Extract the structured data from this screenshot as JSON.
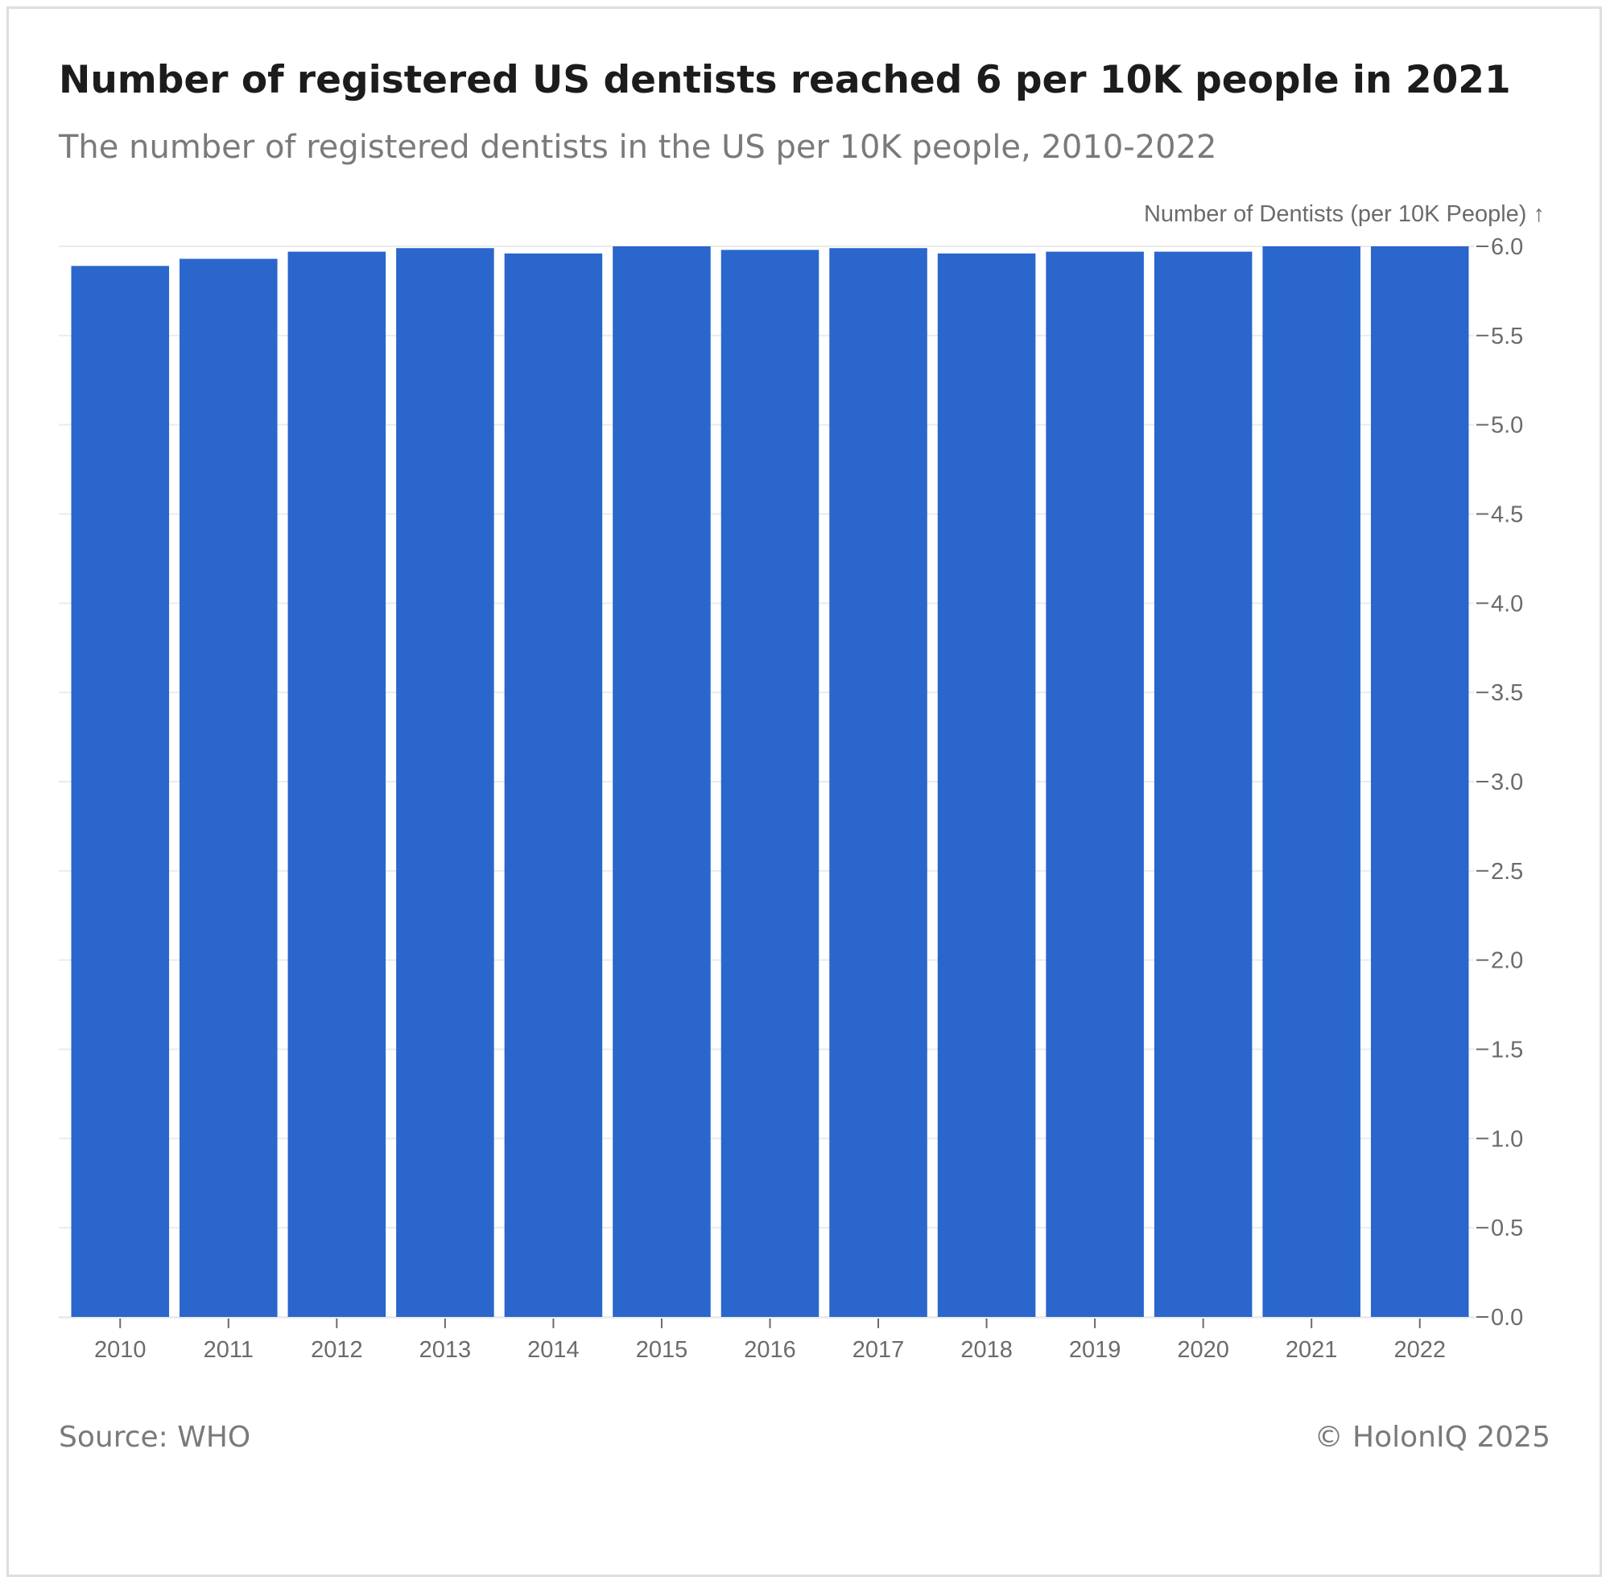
{
  "header": {
    "title": "Number of registered US dentists reached 6 per 10K people in 2021",
    "subtitle": "The number of registered dentists in the US per 10K people, 2010-2022"
  },
  "footer": {
    "source": "Source: WHO",
    "copyright": "© HolonIQ 2025"
  },
  "colors": {
    "bar": "#2a66cc",
    "grid": "#ebebeb",
    "axis": "#6b6b6b"
  },
  "chart_data": {
    "type": "bar",
    "title": "Number of registered US dentists reached 6 per 10K people in 2021",
    "subtitle": "The number of registered dentists in the US per 10K people, 2010-2022",
    "ylabel": "Number of Dentists (per 10K People) ↑",
    "xlabel": "",
    "categories": [
      "2010",
      "2011",
      "2012",
      "2013",
      "2014",
      "2015",
      "2016",
      "2017",
      "2018",
      "2019",
      "2020",
      "2021",
      "2022"
    ],
    "values": [
      5.89,
      5.93,
      5.97,
      5.99,
      5.96,
      6.01,
      5.98,
      5.99,
      5.96,
      5.97,
      5.97,
      6.01,
      6.01
    ],
    "ylim": [
      0,
      6.0
    ],
    "yticks": [
      "0.0",
      "0.5",
      "1.0",
      "1.5",
      "2.0",
      "2.5",
      "3.0",
      "3.5",
      "4.0",
      "4.5",
      "5.0",
      "5.5",
      "6.0"
    ],
    "yaxis_position": "right",
    "grid": true,
    "legend": "none"
  }
}
